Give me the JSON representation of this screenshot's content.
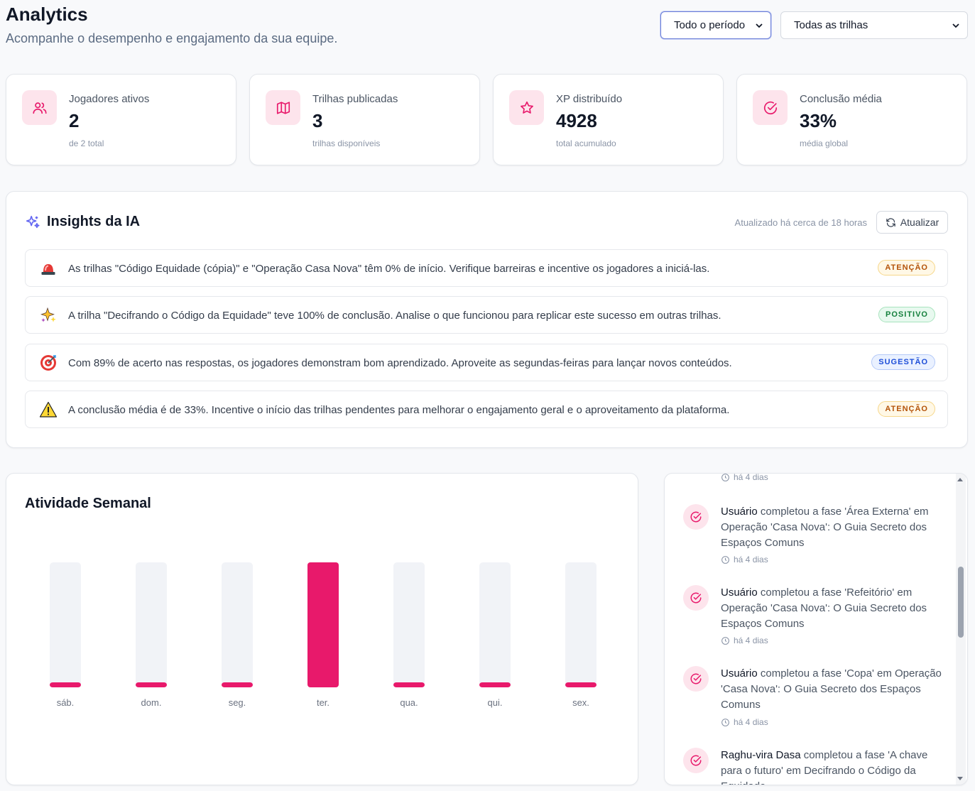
{
  "header": {
    "title": "Analytics",
    "subtitle": "Acompanhe o desempenho e engajamento da sua equipe."
  },
  "filters": {
    "period": "Todo o período",
    "track": "Todas as trilhas"
  },
  "kpis": [
    {
      "label": "Jogadores ativos",
      "value": "2",
      "sub": "de 2 total",
      "icon": "users-icon"
    },
    {
      "label": "Trilhas publicadas",
      "value": "3",
      "sub": "trilhas disponíveis",
      "icon": "map-icon"
    },
    {
      "label": "XP distribuído",
      "value": "4928",
      "sub": "total acumulado",
      "icon": "star-icon"
    },
    {
      "label": "Conclusão média",
      "value": "33%",
      "sub": "média global",
      "icon": "check-circle-icon"
    }
  ],
  "insights": {
    "title": "Insights da IA",
    "updated": "Atualizado há cerca de 18 horas",
    "refresh_label": "Atualizar",
    "items": [
      {
        "icon": "siren-icon",
        "text": "As trilhas \"Código Equidade (cópia)\" e \"Operação Casa Nova\" têm 0% de início. Verifique barreiras e incentive os jogadores a iniciá-las.",
        "badge": "ATENÇÃO",
        "badge_type": "warn"
      },
      {
        "icon": "sparkles-icon",
        "text": "A trilha \"Decifrando o Código da Equidade\" teve 100% de conclusão. Analise o que funcionou para replicar este sucesso em outras trilhas.",
        "badge": "POSITIVO",
        "badge_type": "pos"
      },
      {
        "icon": "target-icon",
        "text": "Com 89% de acerto nas respostas, os jogadores demonstram bom aprendizado. Aproveite as segundas-feiras para lançar novos conteúdos.",
        "badge": "SUGESTÃO",
        "badge_type": "sug"
      },
      {
        "icon": "warning-icon",
        "text": "A conclusão média é de 33%. Incentive o início das trilhas pendentes para melhorar o engajamento geral e o aproveitamento da plataforma.",
        "badge": "ATENÇÃO",
        "badge_type": "warn"
      }
    ]
  },
  "chart_data": {
    "type": "bar",
    "title": "Atividade Semanal",
    "categories": [
      "sáb.",
      "dom.",
      "seg.",
      "ter.",
      "qua.",
      "qui.",
      "sex."
    ],
    "values": [
      0,
      0,
      0,
      1,
      0,
      0,
      0
    ],
    "ylim": [
      0,
      1
    ],
    "grid": false,
    "bar_color": "#e8196b",
    "track_color": "#f1f3f7"
  },
  "feed": {
    "items": [
      {
        "user": "",
        "action": "",
        "time": "há 4 dias"
      },
      {
        "user": "Usuário",
        "action": " completou a fase 'Área Externa' em Operação 'Casa Nova': O Guia Secreto dos Espaços Comuns",
        "time": "há 4 dias"
      },
      {
        "user": "Usuário",
        "action": " completou a fase 'Refeitório' em Operação 'Casa Nova': O Guia Secreto dos Espaços Comuns",
        "time": "há 4 dias"
      },
      {
        "user": "Usuário",
        "action": " completou a fase 'Copa' em Operação 'Casa Nova': O Guia Secreto dos Espaços Comuns",
        "time": "há 4 dias"
      },
      {
        "user": "Raghu-vira Dasa",
        "action": " completou a fase 'A chave para o futuro' em Decifrando o Código da Equidade",
        "time": ""
      }
    ]
  },
  "colors": {
    "accent": "#e8196b",
    "accent_soft": "#fde4ec",
    "ai_purple": "#6366f1"
  }
}
